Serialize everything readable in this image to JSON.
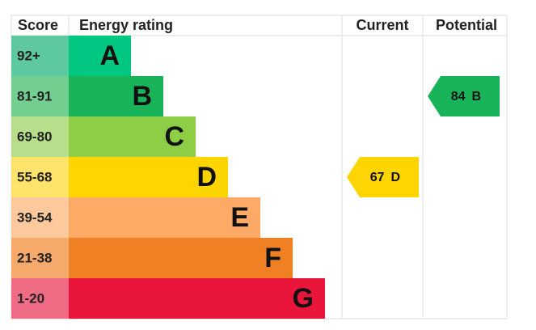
{
  "headers": [
    "Score",
    "Energy rating",
    "Current",
    "Potential"
  ],
  "bands": [
    {
      "score": "92+",
      "letter": "A",
      "color": "#00c781",
      "score_color": "#5ec8a0"
    },
    {
      "score": "81-91",
      "letter": "B",
      "color": "#19b459",
      "score_color": "#72cf8f"
    },
    {
      "score": "69-80",
      "letter": "C",
      "color": "#8dce46",
      "score_color": "#b7df8b"
    },
    {
      "score": "55-68",
      "letter": "D",
      "color": "#ffd500",
      "score_color": "#ffe36b"
    },
    {
      "score": "39-54",
      "letter": "E",
      "color": "#fcaa65",
      "score_color": "#fdc99d"
    },
    {
      "score": "21-38",
      "letter": "F",
      "color": "#ef8023",
      "score_color": "#f5aa6c"
    },
    {
      "score": "1-20",
      "letter": "G",
      "color": "#e9153b",
      "score_color": "#f06b84"
    }
  ],
  "current": {
    "value": 67,
    "letter": "D"
  },
  "potential": {
    "value": 84,
    "letter": "B"
  }
}
